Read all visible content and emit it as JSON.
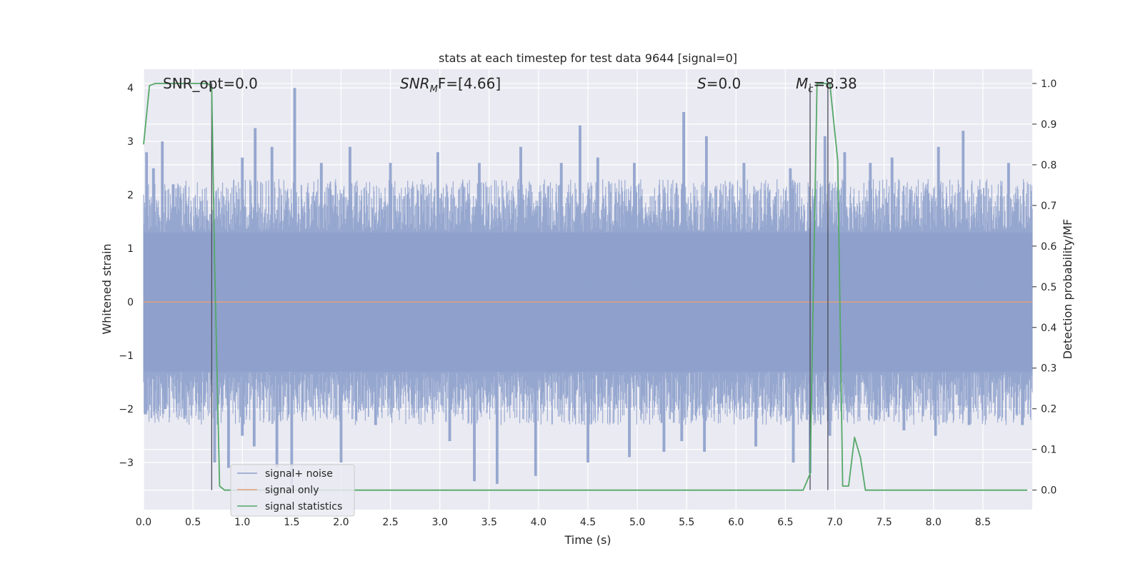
{
  "chart_data": {
    "type": "line",
    "title": "stats at each timestep for test data 9644 [signal=0]",
    "xlabel": "Time (s)",
    "ylabel": "Whitened strain",
    "ylabel_right": "Detection probability/MF",
    "xlim": [
      0.0,
      9.0
    ],
    "ylim": [
      -3.88,
      4.35
    ],
    "ylim_right": [
      -0.048,
      1.035
    ],
    "x_ticks": [
      "0.0",
      "0.5",
      "1.0",
      "1.5",
      "2.0",
      "2.5",
      "3.0",
      "3.5",
      "4.0",
      "4.5",
      "5.0",
      "5.5",
      "6.0",
      "6.5",
      "7.0",
      "7.5",
      "8.0",
      "8.5"
    ],
    "y_ticks": [
      "4",
      "3",
      "2",
      "1",
      "0",
      "−1",
      "−2",
      "−3"
    ],
    "y_right_ticks": [
      "1.0",
      "0.9",
      "0.8",
      "0.7",
      "0.6",
      "0.5",
      "0.4",
      "0.3",
      "0.2",
      "0.1",
      "0.0"
    ],
    "grid": true,
    "legend_position": "lower-left",
    "annotations": {
      "snr_opt": "SNR_opt=0.0",
      "snr_mf_main": "SNR",
      "snr_mf_sub": "M",
      "snr_mf_rest": "F=[4.66]",
      "s_main": "S",
      "s_rest": "=0.0",
      "mc_main": "M",
      "mc_sub": "c",
      "mc_rest": "=8.38"
    },
    "series": [
      {
        "name": "signal+ noise",
        "color": "#8da0cb",
        "typical_range": [
          -1.3,
          1.3
        ],
        "peaks": [
          [
            0.03,
            2.8
          ],
          [
            0.1,
            2.5
          ],
          [
            0.19,
            3.0
          ],
          [
            0.3,
            2.2
          ],
          [
            1.0,
            2.7
          ],
          [
            1.13,
            3.25
          ],
          [
            1.3,
            2.9
          ],
          [
            1.53,
            4.0
          ],
          [
            1.8,
            2.6
          ],
          [
            2.09,
            2.9
          ],
          [
            2.5,
            2.6
          ],
          [
            2.98,
            2.8
          ],
          [
            3.4,
            2.6
          ],
          [
            3.82,
            2.9
          ],
          [
            4.23,
            2.6
          ],
          [
            4.42,
            3.3
          ],
          [
            4.6,
            2.7
          ],
          [
            4.97,
            2.6
          ],
          [
            5.47,
            3.55
          ],
          [
            5.7,
            3.1
          ],
          [
            6.08,
            2.6
          ],
          [
            6.55,
            2.5
          ],
          [
            6.9,
            3.1
          ],
          [
            7.1,
            2.8
          ],
          [
            7.36,
            2.6
          ],
          [
            7.58,
            2.7
          ],
          [
            8.05,
            2.9
          ],
          [
            8.3,
            3.2
          ],
          [
            8.76,
            2.6
          ]
        ],
        "troughs": [
          [
            0.02,
            -2.1
          ],
          [
            0.22,
            -2.0
          ],
          [
            0.72,
            -3.0
          ],
          [
            0.86,
            -3.1
          ],
          [
            1.0,
            -2.5
          ],
          [
            1.12,
            -2.7
          ],
          [
            1.35,
            -3.1
          ],
          [
            1.5,
            -3.45
          ],
          [
            2.0,
            -3.0
          ],
          [
            2.35,
            -2.3
          ],
          [
            3.1,
            -2.6
          ],
          [
            3.35,
            -3.35
          ],
          [
            3.58,
            -3.4
          ],
          [
            3.97,
            -3.25
          ],
          [
            4.5,
            -3.0
          ],
          [
            4.92,
            -2.9
          ],
          [
            5.27,
            -2.8
          ],
          [
            5.45,
            -2.6
          ],
          [
            5.68,
            -2.8
          ],
          [
            6.2,
            -2.7
          ],
          [
            6.58,
            -3.0
          ],
          [
            6.75,
            -3.2
          ],
          [
            6.95,
            -2.5
          ],
          [
            7.42,
            -2.2
          ],
          [
            7.7,
            -2.4
          ],
          [
            8.02,
            -2.5
          ],
          [
            8.36,
            -2.3
          ],
          [
            8.9,
            -2.3
          ]
        ]
      },
      {
        "name": "signal only",
        "color": "#e5a17e",
        "x": [
          0.0,
          9.0
        ],
        "y": [
          0.0,
          0.0
        ]
      },
      {
        "name": "signal statistics",
        "color": "#55a868",
        "x": [
          0.0,
          0.06,
          0.12,
          0.2,
          0.3,
          0.5,
          0.65,
          0.69,
          0.72,
          0.77,
          0.82,
          0.9,
          1.5,
          3.0,
          5.0,
          6.5,
          6.68,
          6.75,
          6.82,
          6.9,
          6.95,
          7.03,
          7.08,
          7.14,
          7.2,
          7.26,
          7.31,
          7.5,
          8.95
        ],
        "y": [
          0.85,
          0.995,
          1.0,
          1.0,
          1.0,
          1.0,
          1.0,
          0.99,
          0.55,
          0.01,
          0.0,
          0.0,
          0.0,
          0.0,
          0.0,
          0.0,
          0.0,
          0.04,
          1.0,
          1.0,
          1.0,
          0.81,
          0.01,
          0.01,
          0.13,
          0.08,
          0.0,
          0.0,
          0.0
        ]
      }
    ],
    "vertical_markers": [
      0.69,
      6.75,
      6.93
    ]
  }
}
